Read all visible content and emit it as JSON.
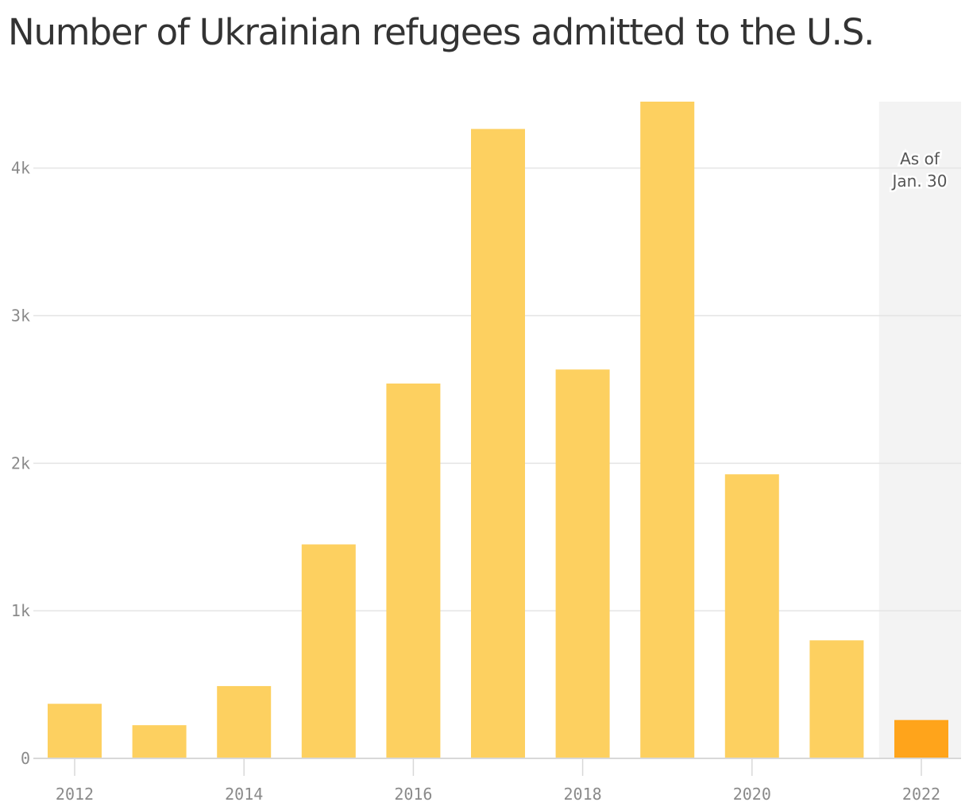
{
  "title": "Number of Ukrainian refugees admitted to the U.S.",
  "annotation": {
    "line1": "As of",
    "line2": "Jan. 30"
  },
  "colors": {
    "bar": "#FDD060",
    "highlight": "#FFA41B",
    "shade": "#F3F3F3",
    "grid": "#E4E4E4"
  },
  "chart_data": {
    "type": "bar",
    "x": [
      2012,
      2013,
      2014,
      2015,
      2016,
      2017,
      2018,
      2019,
      2020,
      2021,
      2022
    ],
    "values": [
      370,
      225,
      490,
      1450,
      2540,
      4265,
      2635,
      4450,
      1925,
      800,
      260
    ],
    "highlight_index": 10,
    "shaded_category": 2022,
    "y_ticks": [
      0,
      1000,
      2000,
      3000,
      4000
    ],
    "y_tick_labels": [
      "0",
      "1k",
      "2k",
      "3k",
      "4k"
    ],
    "x_ticks": [
      2012,
      2014,
      2016,
      2018,
      2020,
      2022
    ],
    "x_tick_labels": [
      "2012",
      "2014",
      "2016",
      "2018",
      "2020",
      "2022"
    ],
    "ylim": [
      0,
      4450
    ],
    "grid": true,
    "legend": "none",
    "xlabel": "",
    "ylabel": ""
  }
}
